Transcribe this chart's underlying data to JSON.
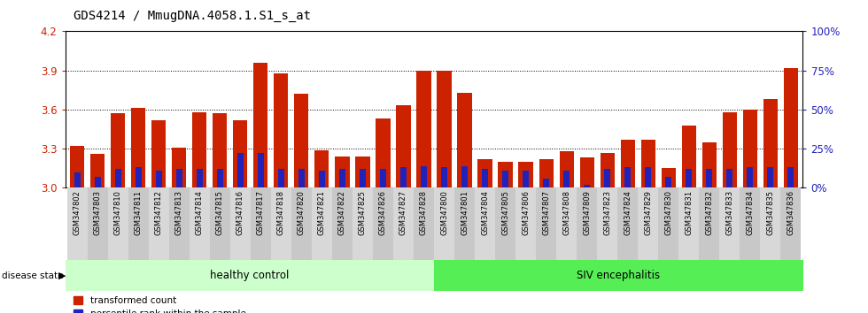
{
  "title": "GDS4214 / MmugDNA.4058.1.S1_s_at",
  "samples": [
    "GSM347802",
    "GSM347803",
    "GSM347810",
    "GSM347811",
    "GSM347812",
    "GSM347813",
    "GSM347814",
    "GSM347815",
    "GSM347816",
    "GSM347817",
    "GSM347818",
    "GSM347820",
    "GSM347821",
    "GSM347822",
    "GSM347825",
    "GSM347826",
    "GSM347827",
    "GSM347828",
    "GSM347800",
    "GSM347801",
    "GSM347804",
    "GSM347805",
    "GSM347806",
    "GSM347807",
    "GSM347808",
    "GSM347809",
    "GSM347823",
    "GSM347824",
    "GSM347829",
    "GSM347830",
    "GSM347831",
    "GSM347832",
    "GSM347833",
    "GSM347834",
    "GSM347835",
    "GSM347836"
  ],
  "transformed_count": [
    3.32,
    3.26,
    3.57,
    3.61,
    3.52,
    3.31,
    3.58,
    3.57,
    3.52,
    3.96,
    3.88,
    3.72,
    3.29,
    3.24,
    3.24,
    3.53,
    3.63,
    3.9,
    3.9,
    3.73,
    3.22,
    3.2,
    3.2,
    3.22,
    3.28,
    3.23,
    3.27,
    3.37,
    3.37,
    3.15,
    3.48,
    3.35,
    3.58,
    3.6,
    3.68,
    3.92
  ],
  "percentile_rank": [
    10,
    7,
    12,
    13,
    11,
    12,
    12,
    12,
    22,
    22,
    12,
    12,
    11,
    12,
    12,
    12,
    13,
    14,
    13,
    14,
    12,
    11,
    11,
    6,
    11,
    2,
    12,
    13,
    13,
    7,
    12,
    12,
    12,
    13,
    13,
    13
  ],
  "healthy_control_count": 18,
  "siv_encephalitis_count": 18,
  "ymin": 3.0,
  "ymax": 4.2,
  "yticks": [
    3.0,
    3.3,
    3.6,
    3.9,
    4.2
  ],
  "right_yticks": [
    0,
    25,
    50,
    75,
    100
  ],
  "right_ytick_labels": [
    "0%",
    "25%",
    "50%",
    "75%",
    "100%"
  ],
  "bar_color": "#cc2200",
  "blue_color": "#2222bb",
  "healthy_bg": "#ccffcc",
  "siv_bg": "#55ee55",
  "tick_bg_even": "#d8d8d8",
  "tick_bg_odd": "#c8c8c8",
  "title_fontsize": 10,
  "axis_label_color_left": "#cc2200",
  "axis_label_color_right": "#2222bb"
}
